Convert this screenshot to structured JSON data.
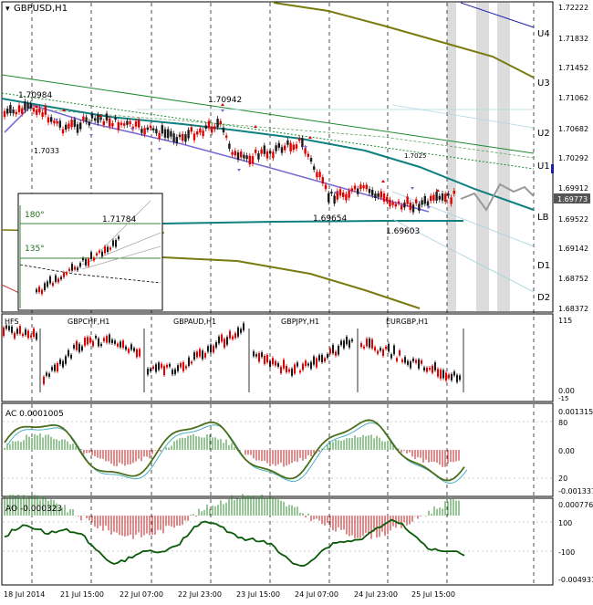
{
  "symbol_title": "GBPUSD,H1",
  "main_price_axis": [
    "1.72222",
    "1.71832",
    "1.71452",
    "1.71062",
    "1.70682",
    "1.70292",
    "1.69912",
    "1.69522",
    "1.69142",
    "1.68752",
    "1.68372"
  ],
  "current_price": "1.69773",
  "level_labels": [
    "U4",
    "U3",
    "U2",
    "U1",
    "LB",
    "D1",
    "D2"
  ],
  "annotations": {
    "high_left": "1.70984",
    "high_mid": "1.70942",
    "low_left": "1.7033",
    "low_mid": "1.69654",
    "low_right": "1.69603",
    "right_mark": "1.7025"
  },
  "inset": {
    "angle_top": "180°",
    "angle_mid": "135°",
    "price": "1.71784"
  },
  "sub1": {
    "label": "HFS",
    "pairs": [
      "GBPCHF,H1",
      "GBPAUD,H1",
      "GBPJPY,H1",
      "EURGBP,H1"
    ],
    "axis": [
      "115",
      "0.00",
      "-15"
    ]
  },
  "sub2": {
    "label": "AC 0.0001005",
    "axis": [
      "0.001315",
      "80",
      "0.00",
      "20",
      "-0.001337"
    ]
  },
  "sub3": {
    "label": "AO -0.000323",
    "axis": [
      "0.000776",
      "100",
      "-100",
      "-0.004931"
    ]
  },
  "time_axis": [
    "18 Jul 2014",
    "21 Jul 15:00",
    "22 Jul 07:00",
    "22 Jul 23:00",
    "23 Jul 15:00",
    "24 Jul 07:00",
    "24 Jul 23:00",
    "25 Jul 15:00"
  ],
  "colors": {
    "bull": "#1a1a1a",
    "bear": "#e00000",
    "teal": "#0f7f7f",
    "olive": "#7a7a10",
    "green_channel": "#1f8a2f",
    "purple": "#7b6bd6",
    "blue_line": "#1c1cb0",
    "ac_green": "#2e8b2e",
    "ac_blue": "#4ab0c0",
    "ao_line": "#0a5a0a",
    "hist_red": "#c01818"
  }
}
